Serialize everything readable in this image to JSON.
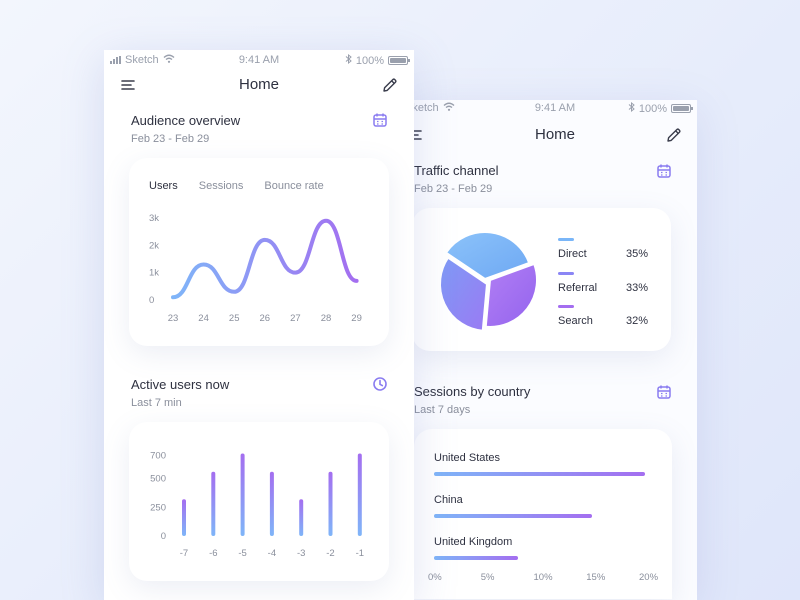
{
  "back_phone": {
    "status": {
      "carrier": "Sketch",
      "time": "9:41 AM",
      "battery": "100%"
    },
    "nav": {
      "title": "Home"
    },
    "traffic": {
      "title": "Traffic channel",
      "subtitle": "Feb 23 - Feb 29",
      "icon": "calendar-icon"
    },
    "sessions_country": {
      "title": "Sessions by country",
      "subtitle": "Last 7 days",
      "icon": "calendar-icon"
    }
  },
  "front_phone": {
    "status": {
      "carrier": "Sketch",
      "time": "9:41 AM",
      "battery": "100%"
    },
    "nav": {
      "title": "Home",
      "menu_icon": "hamburger-menu-icon",
      "edit_icon": "pencil-edit-icon"
    },
    "audience": {
      "title": "Audience overview",
      "subtitle": "Feb 23 - Feb 29",
      "icon": "calendar-icon",
      "tabs": [
        "Users",
        "Sessions",
        "Bounce rate"
      ],
      "active_tab": "Users"
    },
    "active_users": {
      "title": "Active users now",
      "subtitle": "Last 7 min",
      "icon": "clock-icon"
    }
  },
  "colors": {
    "accent_blue": "#7fb5f8",
    "accent_purple": "#a46ef0",
    "pie_blue": "#7ab6f8",
    "pie_purple": "#a874f2",
    "pie_indigo": "#8b86f5",
    "text": "#2e3140",
    "muted": "#8a8f9c"
  },
  "chart_data": [
    {
      "type": "line",
      "title": "",
      "x": [
        "23",
        "24",
        "25",
        "26",
        "27",
        "28",
        "29"
      ],
      "y_ticks": [
        "0",
        "1k",
        "2k",
        "3k"
      ],
      "ylim": [
        0,
        3000
      ],
      "series": [
        {
          "values": [
            100,
            1300,
            300,
            2200,
            1000,
            2900,
            700
          ]
        }
      ],
      "grid": false
    },
    {
      "type": "bar",
      "title": "",
      "categories": [
        "-7",
        "-6",
        "-5",
        "-4",
        "-3",
        "-2",
        "-1"
      ],
      "values": [
        320,
        560,
        720,
        560,
        320,
        560,
        720
      ],
      "y_ticks": [
        "0",
        "250",
        "500",
        "700"
      ],
      "ylim": [
        0,
        750
      ],
      "grid": false
    },
    {
      "type": "pie",
      "title": "",
      "series": [
        {
          "name": "Direct",
          "value": 35,
          "label": "35%"
        },
        {
          "name": "Referral",
          "value": 33,
          "label": "33%"
        },
        {
          "name": "Search",
          "value": 32,
          "label": "32%"
        }
      ]
    },
    {
      "type": "bar",
      "title": "",
      "orientation": "horizontal",
      "categories": [
        "United States",
        "China",
        "United Kingdom"
      ],
      "values": [
        20,
        15,
        8
      ],
      "x_ticks": [
        "0%",
        "5%",
        "10%",
        "15%",
        "20%"
      ],
      "xlim": [
        0,
        20
      ]
    }
  ]
}
